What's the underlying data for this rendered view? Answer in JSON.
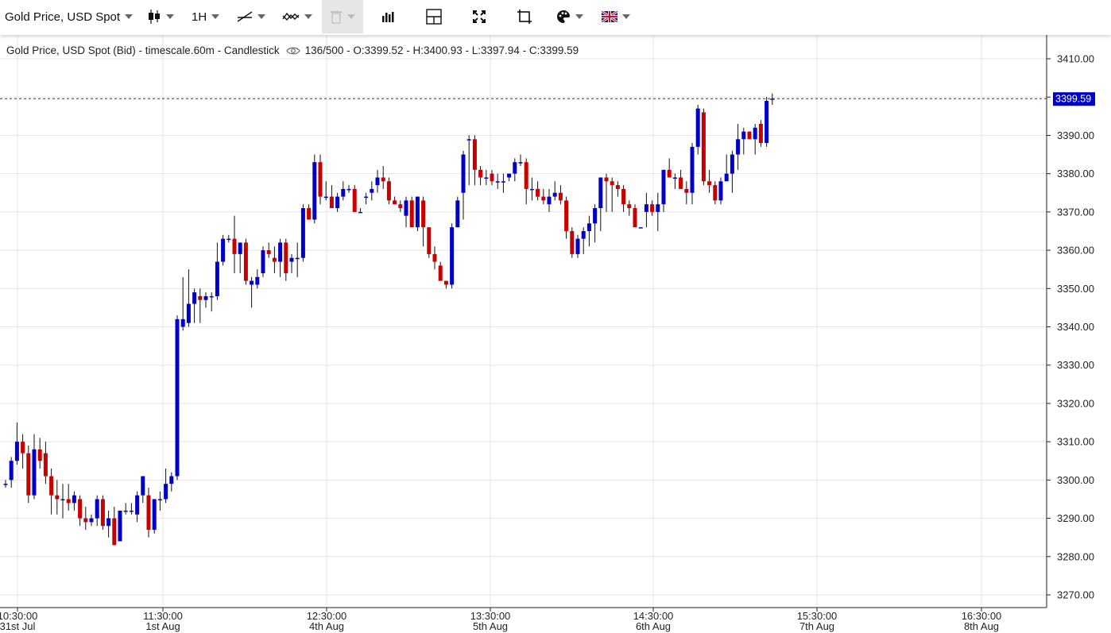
{
  "toolbar": {
    "instrument": "Gold Price, USD Spot",
    "timeframe": "1H",
    "icons": [
      "candlestick-icon",
      "timeframe",
      "trendline-icon",
      "indicator-icon",
      "trash-icon",
      "bar-chart-icon",
      "crosshair-icon",
      "fullscreen-icon",
      "fit-icon",
      "palette-icon",
      "uk-flag-icon"
    ]
  },
  "legend": {
    "title": "Gold Price, USD Spot (Bid) - timescale.60m - Candlestick",
    "stats": "136/500 - O:3399.52 - H:3400.93 - L:3397.94 - C:3399.59"
  },
  "colors": {
    "up": "#0000c8",
    "down": "#c80000",
    "grid": "#e4e4e4",
    "price_tag": "#0000c8"
  },
  "chart_data": {
    "type": "candlestick",
    "title": "Gold Price, USD Spot (Bid) - timescale.60m - Candlestick",
    "ylim": [
      3265,
      3415
    ],
    "y_ticks": [
      "3270.00",
      "3280.00",
      "3290.00",
      "3300.00",
      "3310.00",
      "3320.00",
      "3330.00",
      "3340.00",
      "3350.00",
      "3360.00",
      "3370.00",
      "3380.00",
      "3390.00",
      "3400.00",
      "3410.00"
    ],
    "x_ticks": [
      {
        "time": "10:30:00",
        "date": "31st Jul"
      },
      {
        "time": "11:30:00",
        "date": "1st Aug"
      },
      {
        "time": "12:30:00",
        "date": "4th Aug"
      },
      {
        "time": "13:30:00",
        "date": "5th Aug"
      },
      {
        "time": "14:30:00",
        "date": "6th Aug"
      },
      {
        "time": "15:30:00",
        "date": "7th Aug"
      },
      {
        "time": "16:30:00",
        "date": "8th Aug"
      }
    ],
    "last_price": "3399.59",
    "grid": true,
    "candles": [
      {
        "o": 3299,
        "h": 3300,
        "l": 3298,
        "c": 3299
      },
      {
        "o": 3300,
        "h": 3306,
        "l": 3298,
        "c": 3305
      },
      {
        "o": 3305,
        "h": 3315,
        "l": 3304,
        "c": 3310
      },
      {
        "o": 3310,
        "h": 3312,
        "l": 3303,
        "c": 3307
      },
      {
        "o": 3307,
        "h": 3309,
        "l": 3294,
        "c": 3296
      },
      {
        "o": 3296,
        "h": 3312,
        "l": 3295,
        "c": 3308
      },
      {
        "o": 3308,
        "h": 3311,
        "l": 3303,
        "c": 3305
      },
      {
        "o": 3307,
        "h": 3310,
        "l": 3299,
        "c": 3301
      },
      {
        "o": 3301,
        "h": 3303,
        "l": 3291,
        "c": 3296
      },
      {
        "o": 3296,
        "h": 3300,
        "l": 3291,
        "c": 3295
      },
      {
        "o": 3295,
        "h": 3299,
        "l": 3290,
        "c": 3295
      },
      {
        "o": 3295,
        "h": 3299,
        "l": 3292,
        "c": 3294
      },
      {
        "o": 3294,
        "h": 3297,
        "l": 3292,
        "c": 3296
      },
      {
        "o": 3295,
        "h": 3296,
        "l": 3288,
        "c": 3290
      },
      {
        "o": 3290,
        "h": 3293,
        "l": 3287,
        "c": 3289
      },
      {
        "o": 3289,
        "h": 3291,
        "l": 3288,
        "c": 3290
      },
      {
        "o": 3290,
        "h": 3296,
        "l": 3288,
        "c": 3295
      },
      {
        "o": 3295,
        "h": 3296,
        "l": 3287,
        "c": 3288
      },
      {
        "o": 3288,
        "h": 3292,
        "l": 3285,
        "c": 3290
      },
      {
        "o": 3290,
        "h": 3293,
        "l": 3283,
        "c": 3283
      },
      {
        "o": 3284,
        "h": 3292,
        "l": 3284,
        "c": 3292
      },
      {
        "o": 3292,
        "h": 3294,
        "l": 3291,
        "c": 3292
      },
      {
        "o": 3292,
        "h": 3294,
        "l": 3291,
        "c": 3292
      },
      {
        "o": 3291,
        "h": 3297,
        "l": 3289,
        "c": 3296
      },
      {
        "o": 3296,
        "h": 3301,
        "l": 3294,
        "c": 3301
      },
      {
        "o": 3296,
        "h": 3298,
        "l": 3285,
        "c": 3287
      },
      {
        "o": 3287,
        "h": 3295,
        "l": 3286,
        "c": 3295
      },
      {
        "o": 3295,
        "h": 3297,
        "l": 3292,
        "c": 3295
      },
      {
        "o": 3295,
        "h": 3303,
        "l": 3294,
        "c": 3299
      },
      {
        "o": 3299,
        "h": 3302,
        "l": 3297,
        "c": 3301
      },
      {
        "o": 3301,
        "h": 3343,
        "l": 3300,
        "c": 3342
      },
      {
        "o": 3340,
        "h": 3353,
        "l": 3339,
        "c": 3342
      },
      {
        "o": 3341,
        "h": 3355,
        "l": 3340,
        "c": 3346
      },
      {
        "o": 3346,
        "h": 3350,
        "l": 3341,
        "c": 3349
      },
      {
        "o": 3348,
        "h": 3350,
        "l": 3341,
        "c": 3347
      },
      {
        "o": 3347,
        "h": 3349,
        "l": 3345,
        "c": 3348
      },
      {
        "o": 3348,
        "h": 3349,
        "l": 3344,
        "c": 3348
      },
      {
        "o": 3348,
        "h": 3362,
        "l": 3347,
        "c": 3357
      },
      {
        "o": 3357,
        "h": 3364,
        "l": 3356,
        "c": 3363
      },
      {
        "o": 3363,
        "h": 3364,
        "l": 3362,
        "c": 3363
      },
      {
        "o": 3363,
        "h": 3369,
        "l": 3354,
        "c": 3359
      },
      {
        "o": 3359,
        "h": 3362,
        "l": 3354,
        "c": 3362
      },
      {
        "o": 3362,
        "h": 3363,
        "l": 3351,
        "c": 3352
      },
      {
        "o": 3351,
        "h": 3353,
        "l": 3345,
        "c": 3352
      },
      {
        "o": 3351,
        "h": 3355,
        "l": 3350,
        "c": 3353
      },
      {
        "o": 3354,
        "h": 3361,
        "l": 3353,
        "c": 3360
      },
      {
        "o": 3360,
        "h": 3362,
        "l": 3358,
        "c": 3359
      },
      {
        "o": 3358,
        "h": 3361,
        "l": 3354,
        "c": 3357
      },
      {
        "o": 3357,
        "h": 3363,
        "l": 3353,
        "c": 3362
      },
      {
        "o": 3362,
        "h": 3363,
        "l": 3352,
        "c": 3354
      },
      {
        "o": 3357,
        "h": 3359,
        "l": 3354,
        "c": 3358
      },
      {
        "o": 3358,
        "h": 3362,
        "l": 3353,
        "c": 3358
      },
      {
        "o": 3358,
        "h": 3372,
        "l": 3357,
        "c": 3371
      },
      {
        "o": 3371,
        "h": 3372,
        "l": 3368,
        "c": 3368
      },
      {
        "o": 3368,
        "h": 3385,
        "l": 3367,
        "c": 3383
      },
      {
        "o": 3383,
        "h": 3385,
        "l": 3372,
        "c": 3374
      },
      {
        "o": 3374,
        "h": 3378,
        "l": 3373,
        "c": 3374
      },
      {
        "o": 3374,
        "h": 3377,
        "l": 3371,
        "c": 3371
      },
      {
        "o": 3371,
        "h": 3375,
        "l": 3370,
        "c": 3374
      },
      {
        "o": 3374,
        "h": 3378,
        "l": 3373,
        "c": 3376
      },
      {
        "o": 3376,
        "h": 3377,
        "l": 3375,
        "c": 3376
      },
      {
        "o": 3376,
        "h": 3377,
        "l": 3370,
        "c": 3370
      },
      {
        "o": 3370,
        "h": 3371,
        "l": 3370,
        "c": 3370
      },
      {
        "o": 3374,
        "h": 3375,
        "l": 3372,
        "c": 3374
      },
      {
        "o": 3375,
        "h": 3378,
        "l": 3373,
        "c": 3376
      },
      {
        "o": 3377,
        "h": 3381,
        "l": 3375,
        "c": 3379
      },
      {
        "o": 3379,
        "h": 3382,
        "l": 3376,
        "c": 3378
      },
      {
        "o": 3378,
        "h": 3379,
        "l": 3372,
        "c": 3373
      },
      {
        "o": 3373,
        "h": 3374,
        "l": 3372,
        "c": 3372
      },
      {
        "o": 3372,
        "h": 3373,
        "l": 3370,
        "c": 3371
      },
      {
        "o": 3369,
        "h": 3374,
        "l": 3366,
        "c": 3373
      },
      {
        "o": 3373,
        "h": 3374,
        "l": 3366,
        "c": 3366
      },
      {
        "o": 3366,
        "h": 3374,
        "l": 3365,
        "c": 3374
      },
      {
        "o": 3373,
        "h": 3374,
        "l": 3361,
        "c": 3366
      },
      {
        "o": 3366,
        "h": 3366,
        "l": 3358,
        "c": 3359
      },
      {
        "o": 3359,
        "h": 3361,
        "l": 3355,
        "c": 3357
      },
      {
        "o": 3356,
        "h": 3357,
        "l": 3352,
        "c": 3352
      },
      {
        "o": 3352,
        "h": 3352,
        "l": 3350,
        "c": 3351
      },
      {
        "o": 3351,
        "h": 3367,
        "l": 3350,
        "c": 3366
      },
      {
        "o": 3366,
        "h": 3374,
        "l": 3366,
        "c": 3373
      },
      {
        "o": 3375,
        "h": 3386,
        "l": 3368,
        "c": 3385
      },
      {
        "o": 3389,
        "h": 3390,
        "l": 3377,
        "c": 3389
      },
      {
        "o": 3389,
        "h": 3390,
        "l": 3377,
        "c": 3381
      },
      {
        "o": 3381,
        "h": 3382,
        "l": 3377,
        "c": 3379
      },
      {
        "o": 3379,
        "h": 3381,
        "l": 3377,
        "c": 3379
      },
      {
        "o": 3380,
        "h": 3381,
        "l": 3377,
        "c": 3378
      },
      {
        "o": 3378,
        "h": 3380,
        "l": 3376,
        "c": 3378
      },
      {
        "o": 3378,
        "h": 3380,
        "l": 3375,
        "c": 3378
      },
      {
        "o": 3379,
        "h": 3380,
        "l": 3378,
        "c": 3380
      },
      {
        "o": 3380,
        "h": 3384,
        "l": 3378,
        "c": 3383
      },
      {
        "o": 3383,
        "h": 3385,
        "l": 3382,
        "c": 3383
      },
      {
        "o": 3383,
        "h": 3384,
        "l": 3372,
        "c": 3376
      },
      {
        "o": 3376,
        "h": 3379,
        "l": 3373,
        "c": 3376
      },
      {
        "o": 3376,
        "h": 3378,
        "l": 3373,
        "c": 3374
      },
      {
        "o": 3374,
        "h": 3376,
        "l": 3372,
        "c": 3373
      },
      {
        "o": 3372,
        "h": 3376,
        "l": 3370,
        "c": 3374
      },
      {
        "o": 3374,
        "h": 3378,
        "l": 3373,
        "c": 3375
      },
      {
        "o": 3375,
        "h": 3377,
        "l": 3372,
        "c": 3373
      },
      {
        "o": 3373,
        "h": 3374,
        "l": 3363,
        "c": 3365
      },
      {
        "o": 3365,
        "h": 3366,
        "l": 3358,
        "c": 3359
      },
      {
        "o": 3359,
        "h": 3364,
        "l": 3358,
        "c": 3363
      },
      {
        "o": 3363,
        "h": 3366,
        "l": 3359,
        "c": 3365
      },
      {
        "o": 3365,
        "h": 3369,
        "l": 3361,
        "c": 3367
      },
      {
        "o": 3367,
        "h": 3372,
        "l": 3362,
        "c": 3371
      },
      {
        "o": 3371,
        "h": 3379,
        "l": 3365,
        "c": 3379
      },
      {
        "o": 3379,
        "h": 3380,
        "l": 3370,
        "c": 3378
      },
      {
        "o": 3378,
        "h": 3379,
        "l": 3370,
        "c": 3377
      },
      {
        "o": 3377,
        "h": 3378,
        "l": 3374,
        "c": 3376
      },
      {
        "o": 3376,
        "h": 3377,
        "l": 3370,
        "c": 3372
      },
      {
        "o": 3372,
        "h": 3373,
        "l": 3369,
        "c": 3371
      },
      {
        "o": 3371,
        "h": 3372,
        "l": 3366,
        "c": 3366
      },
      {
        "o": 3366,
        "h": 3366,
        "l": 3366,
        "c": 3366
      },
      {
        "o": 3370,
        "h": 3375,
        "l": 3366,
        "c": 3372
      },
      {
        "o": 3372,
        "h": 3373,
        "l": 3369,
        "c": 3370
      },
      {
        "o": 3370,
        "h": 3375,
        "l": 3365,
        "c": 3372
      },
      {
        "o": 3372,
        "h": 3381,
        "l": 3370,
        "c": 3381
      },
      {
        "o": 3381,
        "h": 3384,
        "l": 3379,
        "c": 3379
      },
      {
        "o": 3379,
        "h": 3380,
        "l": 3376,
        "c": 3379
      },
      {
        "o": 3379,
        "h": 3381,
        "l": 3376,
        "c": 3376
      },
      {
        "o": 3376,
        "h": 3378,
        "l": 3372,
        "c": 3375
      },
      {
        "o": 3375,
        "h": 3388,
        "l": 3372,
        "c": 3387
      },
      {
        "o": 3387,
        "h": 3398,
        "l": 3385,
        "c": 3397
      },
      {
        "o": 3396,
        "h": 3397,
        "l": 3377,
        "c": 3378
      },
      {
        "o": 3378,
        "h": 3381,
        "l": 3375,
        "c": 3377
      },
      {
        "o": 3377,
        "h": 3378,
        "l": 3372,
        "c": 3373
      },
      {
        "o": 3373,
        "h": 3379,
        "l": 3372,
        "c": 3378
      },
      {
        "o": 3378,
        "h": 3385,
        "l": 3378,
        "c": 3380
      },
      {
        "o": 3380,
        "h": 3386,
        "l": 3375,
        "c": 3385
      },
      {
        "o": 3385,
        "h": 3393,
        "l": 3381,
        "c": 3389
      },
      {
        "o": 3389,
        "h": 3392,
        "l": 3385,
        "c": 3391
      },
      {
        "o": 3391,
        "h": 3391,
        "l": 3389,
        "c": 3389
      },
      {
        "o": 3389,
        "h": 3393,
        "l": 3385,
        "c": 3392
      },
      {
        "o": 3393,
        "h": 3394,
        "l": 3387,
        "c": 3388
      },
      {
        "o": 3388,
        "h": 3400,
        "l": 3387,
        "c": 3399
      },
      {
        "o": 3399.52,
        "h": 3400.93,
        "l": 3397.94,
        "c": 3399.59
      }
    ]
  }
}
